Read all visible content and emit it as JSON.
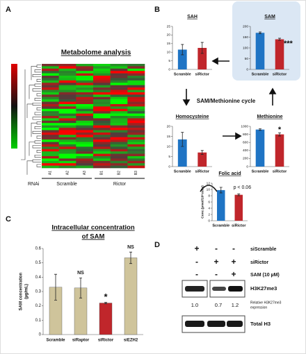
{
  "panels": {
    "A": {
      "label": "A",
      "title": "Metabolome analysis",
      "columns": [
        "A1",
        "A2",
        "A3",
        "B1",
        "B2",
        "B3"
      ],
      "rnai": "RNAi",
      "groups": [
        "Scramble",
        "Rictor"
      ]
    },
    "B": {
      "label": "B",
      "cycle": "SAM/Methionine cycle",
      "charts": [
        {
          "type": "bar",
          "title": "SAH",
          "categories": [
            "Scramble",
            "siRictor"
          ],
          "values": [
            11.5,
            12.5
          ],
          "errors": [
            3,
            3.2
          ],
          "colors": [
            "#1f74c4",
            "#c0262b"
          ],
          "ylim": [
            0,
            25
          ],
          "yticks": [
            0,
            5,
            10,
            15,
            20,
            25
          ]
        },
        {
          "type": "bar",
          "title": "SAM",
          "categories": [
            "Scramble",
            "siRictor"
          ],
          "values": [
            170,
            140
          ],
          "errors": [
            4,
            5
          ],
          "colors": [
            "#1f74c4",
            "#c0262b"
          ],
          "ylim": [
            0,
            200
          ],
          "yticks": [
            0,
            50,
            100,
            150,
            200
          ],
          "annotations": [
            null,
            "***"
          ]
        },
        {
          "type": "bar",
          "title": "Homocysteine",
          "categories": [
            "Scramble",
            "siRictor"
          ],
          "values": [
            13.5,
            7
          ],
          "errors": [
            3.5,
            1
          ],
          "colors": [
            "#1f74c4",
            "#c0262b"
          ],
          "ylim": [
            0,
            20
          ],
          "yticks": [
            0,
            5,
            10,
            15,
            20
          ]
        },
        {
          "type": "bar",
          "title": "Methionine",
          "categories": [
            "Scramble",
            "siRictor"
          ],
          "values": [
            920,
            800
          ],
          "errors": [
            20,
            40
          ],
          "colors": [
            "#1f74c4",
            "#c0262b"
          ],
          "ylim": [
            0,
            1000
          ],
          "yticks": [
            0,
            200,
            400,
            600,
            800,
            1000
          ],
          "annotations": [
            null,
            "*"
          ]
        },
        {
          "type": "bar",
          "title": "Folic acid",
          "ylabel": "Conc.(pmol/10⁶cells)",
          "categories": [
            "Scramble",
            "siRictor"
          ],
          "values": [
            9.8,
            8.3
          ],
          "errors": [
            0.9,
            0.3
          ],
          "colors": [
            "#1f74c4",
            "#c0262b"
          ],
          "ylim": [
            0,
            12
          ],
          "yticks": [
            0,
            2,
            4,
            6,
            8,
            10,
            12
          ],
          "note": "p < 0.06"
        }
      ]
    },
    "C": {
      "label": "C",
      "chart": {
        "type": "bar",
        "title": [
          "Intracellular concentration",
          "of SAM"
        ],
        "ylabel": [
          "SAM concentration",
          "(µg/mL)"
        ],
        "categories": [
          "Scramble",
          "siRaptor",
          "siRictor",
          "siEZH2"
        ],
        "values": [
          0.33,
          0.325,
          0.22,
          0.535
        ],
        "errors": [
          0.09,
          0.07,
          0.005,
          0.04
        ],
        "colors": [
          "#cfc49b",
          "#cfc49b",
          "#c0262b",
          "#cfc49b"
        ],
        "ylim": [
          0,
          0.6
        ],
        "yticks": [
          0,
          0.1,
          0.2,
          0.3,
          0.4,
          0.5,
          0.6
        ],
        "annotations": [
          null,
          "NS",
          "*",
          "NS"
        ]
      }
    },
    "D": {
      "label": "D",
      "rows": [
        {
          "name": "siScramble",
          "signs": [
            "+",
            "-",
            "-"
          ]
        },
        {
          "name": "siRictor",
          "signs": [
            "-",
            "+",
            "+"
          ]
        },
        {
          "name": "SAM (10 µM)",
          "signs": [
            "-",
            "-",
            "+"
          ]
        }
      ],
      "blot1": "H3K27me3",
      "quant": [
        "1.0",
        "0.7",
        "1.2"
      ],
      "quant_label": [
        "Relative H3K27me3",
        "expression"
      ],
      "blot2": "Total H3"
    }
  }
}
